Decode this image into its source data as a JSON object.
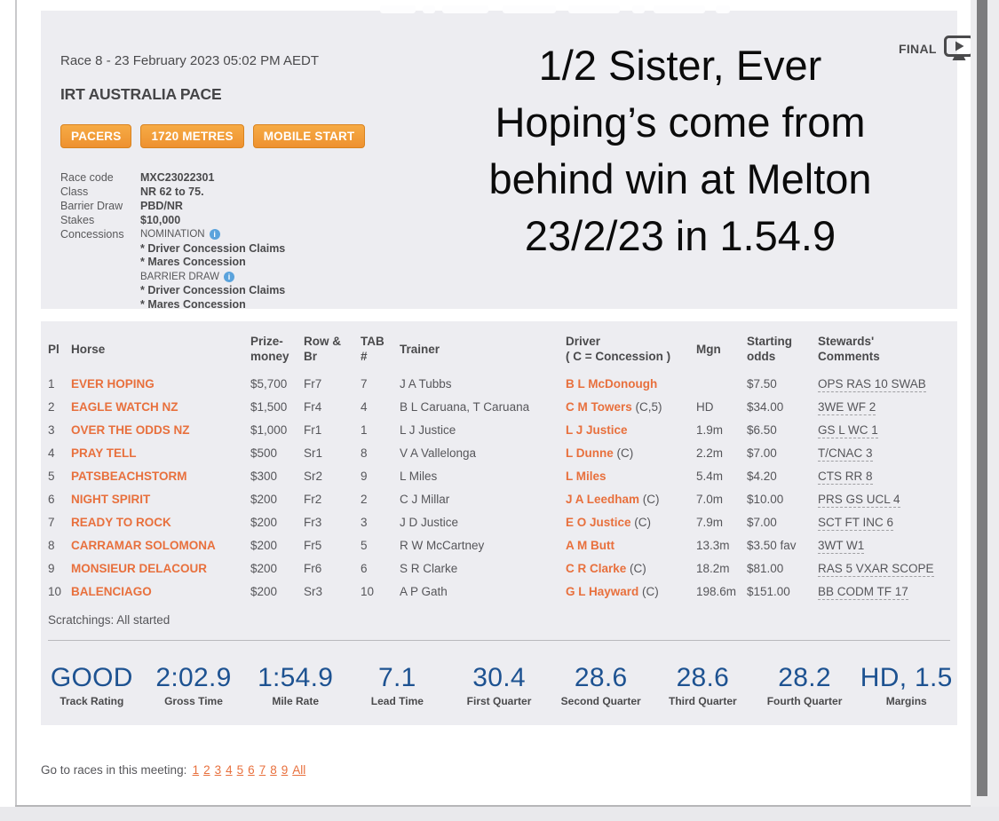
{
  "header": {
    "race_line": "Race 8 - 23 February 2023  05:02 PM AEDT",
    "race_name": "IRT AUSTRALIA PACE",
    "badges": [
      "PACERS",
      "1720 METRES",
      "MOBILE START"
    ],
    "final_label": "FINAL",
    "details": [
      {
        "label": "Race code",
        "value": "MXC23022301"
      },
      {
        "label": "Class",
        "value": "NR 62 to 75."
      },
      {
        "label": "Barrier Draw",
        "value": "PBD/NR"
      },
      {
        "label": "Stakes",
        "value": "$10,000"
      }
    ],
    "concessions_label": "Concessions",
    "concessions": [
      {
        "text": "NOMINATION",
        "info": true
      },
      {
        "text": "* Driver Concession Claims",
        "info": false
      },
      {
        "text": "* Mares Concession",
        "info": false
      },
      {
        "text": "BARRIER DRAW",
        "info": true
      },
      {
        "text": "* Driver Concession Claims",
        "info": false
      },
      {
        "text": "* Mares Concession",
        "info": false
      }
    ],
    "video_caption_lines": [
      "1/2 Sister, Ever",
      "Hoping’s come from",
      "behind win at Melton",
      "23/2/23 in 1.54.9"
    ]
  },
  "results": {
    "columns": [
      "Pl",
      "Horse",
      "Prize-\nmoney",
      "Row &\nBr",
      "TAB\n#",
      "Trainer",
      "Driver\n( C = Concession )",
      "Mgn",
      "Starting\nodds",
      "Stewards'\nComments"
    ],
    "rows": [
      {
        "pl": "1",
        "horse": "EVER HOPING",
        "prize": "$5,700",
        "row_br": "Fr7",
        "tab": "7",
        "trainer": "J A Tubbs",
        "driver": "B L McDonough",
        "driver_note": "",
        "mgn": "",
        "odds": "$7.50",
        "comments": "OPS RAS 10 SWAB"
      },
      {
        "pl": "2",
        "horse": "EAGLE WATCH NZ",
        "prize": "$1,500",
        "row_br": "Fr4",
        "tab": "4",
        "trainer": "B L Caruana, T Caruana",
        "driver": "C M Towers",
        "driver_note": "(C,5)",
        "mgn": "HD",
        "odds": "$34.00",
        "comments": "3WE WF 2"
      },
      {
        "pl": "3",
        "horse": "OVER THE ODDS NZ",
        "prize": "$1,000",
        "row_br": "Fr1",
        "tab": "1",
        "trainer": "L J Justice",
        "driver": "L J Justice",
        "driver_note": "",
        "mgn": "1.9m",
        "odds": "$6.50",
        "comments": "GS L WC 1"
      },
      {
        "pl": "4",
        "horse": "PRAY TELL",
        "prize": "$500",
        "row_br": "Sr1",
        "tab": "8",
        "trainer": "V A Vallelonga",
        "driver": "L Dunne",
        "driver_note": "(C)",
        "mgn": "2.2m",
        "odds": "$7.00",
        "comments": "T/CNAC 3"
      },
      {
        "pl": "5",
        "horse": "PATSBEACHSTORM",
        "prize": "$300",
        "row_br": "Sr2",
        "tab": "9",
        "trainer": "L Miles",
        "driver": "L Miles",
        "driver_note": "",
        "mgn": "5.4m",
        "odds": "$4.20",
        "comments": "CTS RR 8"
      },
      {
        "pl": "6",
        "horse": "NIGHT SPIRIT",
        "prize": "$200",
        "row_br": "Fr2",
        "tab": "2",
        "trainer": "C J Millar",
        "driver": "J A Leedham",
        "driver_note": "(C)",
        "mgn": "7.0m",
        "odds": "$10.00",
        "comments": "PRS GS UCL 4"
      },
      {
        "pl": "7",
        "horse": "READY TO ROCK",
        "prize": "$200",
        "row_br": "Fr3",
        "tab": "3",
        "trainer": "J D Justice",
        "driver": "E O Justice",
        "driver_note": "(C)",
        "mgn": "7.9m",
        "odds": "$7.00",
        "comments": "SCT FT INC 6"
      },
      {
        "pl": "8",
        "horse": "CARRAMAR SOLOMONA",
        "prize": "$200",
        "row_br": "Fr5",
        "tab": "5",
        "trainer": "R W McCartney",
        "driver": "A M Butt",
        "driver_note": "",
        "mgn": "13.3m",
        "odds": "$3.50 fav",
        "comments": "3WT W1"
      },
      {
        "pl": "9",
        "horse": "MONSIEUR DELACOUR",
        "prize": "$200",
        "row_br": "Fr6",
        "tab": "6",
        "trainer": "S R Clarke",
        "driver": "C R Clarke",
        "driver_note": "(C)",
        "mgn": "18.2m",
        "odds": "$81.00",
        "comments": "RAS 5 VXAR SCOPE"
      },
      {
        "pl": "10",
        "horse": "BALENCIAGO",
        "prize": "$200",
        "row_br": "Sr3",
        "tab": "10",
        "trainer": "A P Gath",
        "driver": "G L Hayward",
        "driver_note": "(C)",
        "mgn": "198.6m",
        "odds": "$151.00",
        "comments": "BB CODM TF 17"
      }
    ],
    "scratchings": "Scratchings: All started"
  },
  "stats": [
    {
      "value": "GOOD",
      "label": "Track Rating"
    },
    {
      "value": "2:02.9",
      "label": "Gross Time"
    },
    {
      "value": "1:54.9",
      "label": "Mile Rate"
    },
    {
      "value": "7.1",
      "label": "Lead Time"
    },
    {
      "value": "30.4",
      "label": "First Quarter"
    },
    {
      "value": "28.6",
      "label": "Second Quarter"
    },
    {
      "value": "28.6",
      "label": "Third Quarter"
    },
    {
      "value": "28.2",
      "label": "Fourth Quarter"
    },
    {
      "value": "HD, 1.5",
      "label": "Margins"
    }
  ],
  "footer": {
    "goto_label": "Go to races in this meeting:",
    "links": [
      "1",
      "2",
      "3",
      "4",
      "5",
      "6",
      "7",
      "8",
      "9",
      "All"
    ]
  },
  "colors": {
    "accent_orange": "#e8703d",
    "badge_orange": "#f19b3a",
    "stats_blue": "#1d5291",
    "info_blue": "#5ba3dc",
    "panel_gray": "#ededf1"
  }
}
